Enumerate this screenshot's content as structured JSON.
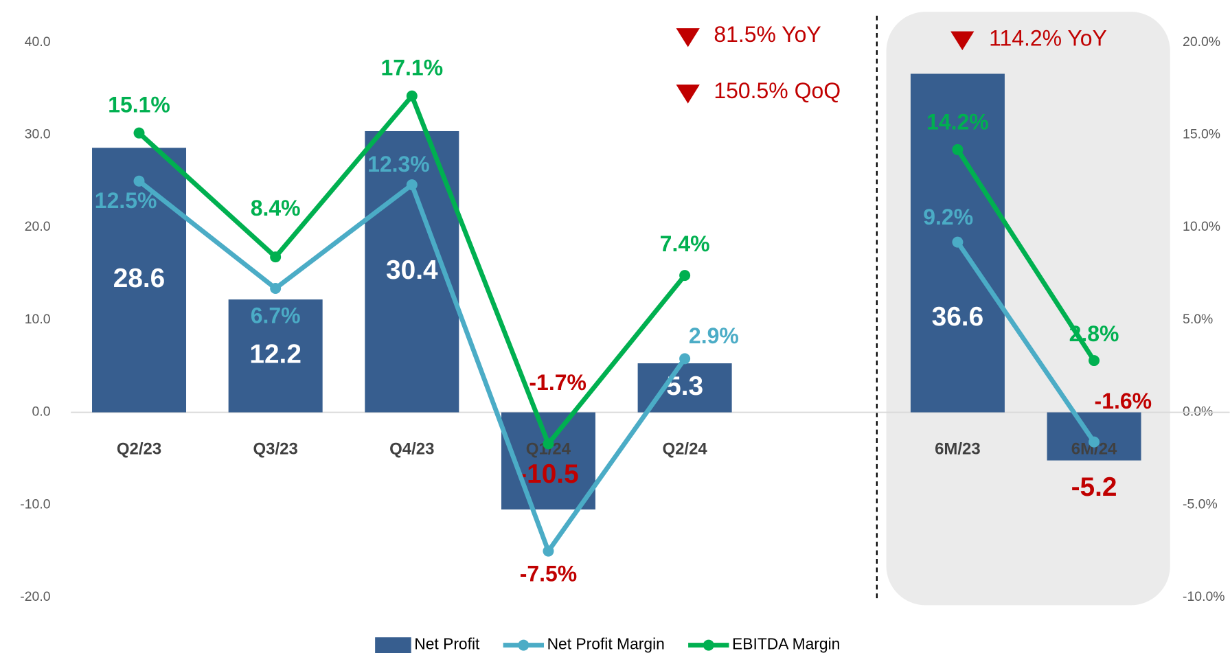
{
  "chart_data": {
    "type": "bar",
    "categories": [
      "Q2/23",
      "Q3/23",
      "Q4/23",
      "Q1/24",
      "Q2/24",
      null,
      "6M/23",
      "6M/24"
    ],
    "series": [
      {
        "name": "Net Profit",
        "type": "bar",
        "color": "#375e8f",
        "axis": "y",
        "values": [
          28.6,
          12.2,
          30.4,
          -10.5,
          5.3,
          null,
          36.6,
          -5.2
        ]
      },
      {
        "name": "Net Profit Margin",
        "type": "line",
        "color": "#4bacc6",
        "axis": "y2",
        "values": [
          12.5,
          6.7,
          12.3,
          -7.5,
          2.9,
          null,
          9.2,
          -1.6
        ],
        "value_labels": [
          "12.5%",
          "6.7%",
          "12.3%",
          "-7.5%",
          "2.9%",
          null,
          "9.2%",
          "-1.6%"
        ]
      },
      {
        "name": "EBITDA Margin",
        "type": "line",
        "color": "#00b050",
        "axis": "y2",
        "values": [
          15.1,
          8.4,
          17.1,
          -1.7,
          7.4,
          null,
          14.2,
          2.8
        ],
        "value_labels": [
          "15.1%",
          "8.4%",
          "17.1%",
          "-1.7%",
          "7.4%",
          null,
          "14.2%",
          "2.8%"
        ]
      }
    ],
    "negative_color": "#c00000",
    "ylim": [
      -20,
      40
    ],
    "yticks": [
      {
        "value": -20,
        "label": "-20.0"
      },
      {
        "value": -10,
        "label": "-10.0"
      },
      {
        "value": 0,
        "label": "0.0"
      },
      {
        "value": 10,
        "label": "10.0"
      },
      {
        "value": 20,
        "label": "20.0"
      },
      {
        "value": 30,
        "label": "30.0"
      },
      {
        "value": 40,
        "label": "40.0"
      }
    ],
    "y2lim": [
      -10,
      20
    ],
    "y2ticks": [
      {
        "value": -10,
        "label": "-10.0%"
      },
      {
        "value": -5,
        "label": "-5.0%"
      },
      {
        "value": 0,
        "label": "0.0%"
      },
      {
        "value": 5,
        "label": "5.0%"
      },
      {
        "value": 10,
        "label": "10.0%"
      },
      {
        "value": 15,
        "label": "15.0%"
      },
      {
        "value": 20,
        "label": "20.0%"
      }
    ],
    "annotations": [
      "81.5% YoY",
      "150.5% QoQ",
      "114.2% YoY"
    ],
    "legend": "bottom"
  }
}
